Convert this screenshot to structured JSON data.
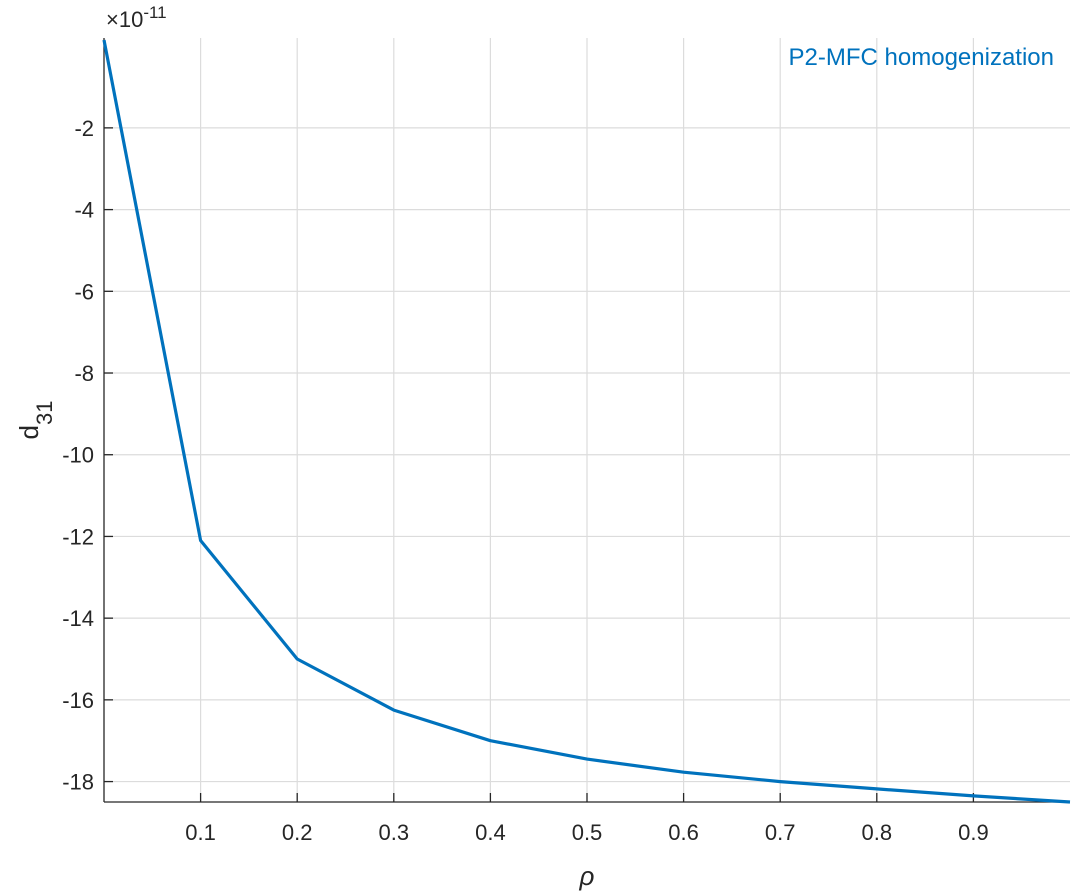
{
  "chart_data": {
    "type": "line",
    "xlabel": "ρ",
    "ylabel_main": "d",
    "ylabel_sub": "31",
    "exponent_prefix": "×10",
    "exponent_power": "-11",
    "xlim": [
      0,
      1
    ],
    "ylim": [
      -18.5,
      0.2
    ],
    "xticks": [
      0.1,
      0.2,
      0.3,
      0.4,
      0.5,
      0.6,
      0.7,
      0.8,
      0.9
    ],
    "yticks": [
      -18,
      -16,
      -14,
      -12,
      -10,
      -8,
      -6,
      -4,
      -2
    ],
    "grid": true,
    "legend_position": "top-right",
    "series": [
      {
        "name": "P2-MFC homogenization",
        "color": "#0072BD",
        "x": [
          0,
          0.1,
          0.2,
          0.3,
          0.4,
          0.5,
          0.6,
          0.7,
          0.8,
          0.9,
          1.0
        ],
        "y": [
          0.15,
          -12.1,
          -15.0,
          -16.25,
          -17.0,
          -17.45,
          -17.77,
          -18.0,
          -18.18,
          -18.35,
          -18.5
        ]
      }
    ]
  }
}
